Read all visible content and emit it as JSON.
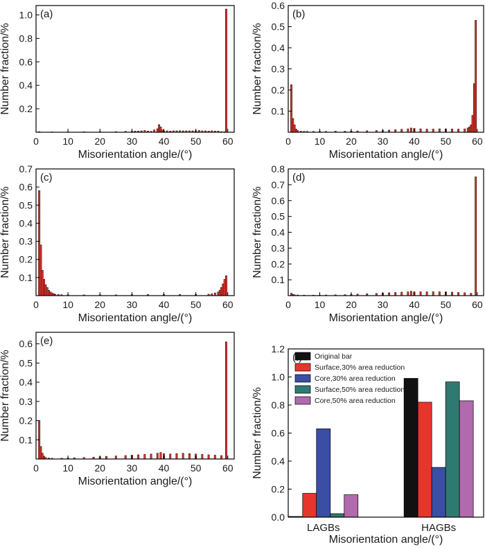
{
  "figure": {
    "type": "multi-panel histogram figure"
  },
  "colors": {
    "bar_fill": "#e8352c",
    "bar_stroke": "#2a0d0b",
    "axis": "#000000"
  },
  "chart_data": [
    {
      "id": "a",
      "type": "bar",
      "label": "(a)",
      "xlabel": "Misorientation angle/(°)",
      "ylabel": "Number fraction/%",
      "xlim": [
        0,
        62
      ],
      "ylim": [
        0,
        1.08
      ],
      "xticks": [
        "0",
        "10",
        "20",
        "30",
        "40",
        "50",
        "60"
      ],
      "yticks": [
        "0.2",
        "0.4",
        "0.6",
        "0.8",
        "1.0"
      ],
      "bin_width": 0.5,
      "x": [
        1,
        5,
        10,
        15,
        20,
        25,
        28,
        30,
        31,
        32,
        33,
        34,
        35,
        36,
        37,
        38,
        38.5,
        39,
        39.5,
        40,
        41,
        42,
        43,
        44,
        45,
        46,
        47,
        48,
        49,
        50,
        51,
        52,
        53,
        54,
        55,
        56,
        57,
        58,
        59,
        59.5
      ],
      "values": [
        0.005,
        0.003,
        0.003,
        0.004,
        0.005,
        0.005,
        0.008,
        0.008,
        0.01,
        0.01,
        0.012,
        0.015,
        0.01,
        0.008,
        0.02,
        0.03,
        0.065,
        0.045,
        0.02,
        0.012,
        0.012,
        0.01,
        0.012,
        0.012,
        0.013,
        0.012,
        0.012,
        0.012,
        0.012,
        0.013,
        0.015,
        0.012,
        0.012,
        0.01,
        0.012,
        0.01,
        0.01,
        0.005,
        0.004,
        1.05
      ]
    },
    {
      "id": "b",
      "type": "bar",
      "label": "(b)",
      "xlabel": "Misorientation angle/(°)",
      "ylabel": "Number fraction/%",
      "xlim": [
        0,
        62
      ],
      "ylim": [
        0,
        0.6
      ],
      "xticks": [
        "0",
        "10",
        "20",
        "30",
        "40",
        "50",
        "60"
      ],
      "yticks": [
        "0.1",
        "0.2",
        "0.3",
        "0.4",
        "0.5",
        "0.6"
      ],
      "bin_width": 0.5,
      "x": [
        1,
        1.5,
        2,
        2.5,
        3,
        4,
        5,
        6,
        8,
        10,
        12,
        15,
        18,
        20,
        22,
        25,
        28,
        30,
        32,
        34,
        36,
        38,
        39,
        40,
        42,
        44,
        46,
        48,
        50,
        52,
        54,
        56,
        57,
        57.5,
        58,
        58.5,
        59,
        59.5
      ],
      "values": [
        0.225,
        0.065,
        0.035,
        0.015,
        0.008,
        0.005,
        0.004,
        0.004,
        0.004,
        0.004,
        0.004,
        0.005,
        0.005,
        0.006,
        0.006,
        0.007,
        0.008,
        0.008,
        0.01,
        0.012,
        0.014,
        0.016,
        0.02,
        0.018,
        0.016,
        0.015,
        0.015,
        0.016,
        0.016,
        0.015,
        0.015,
        0.016,
        0.02,
        0.025,
        0.035,
        0.08,
        0.23,
        0.53
      ]
    },
    {
      "id": "c",
      "type": "bar",
      "label": "(c)",
      "xlabel": "Misorientation angle/(°)",
      "ylabel": "Number fraction/%",
      "xlim": [
        0,
        62
      ],
      "ylim": [
        0,
        0.7
      ],
      "xticks": [
        "0",
        "10",
        "20",
        "30",
        "40",
        "50",
        "60"
      ],
      "yticks": [
        "0.1",
        "0.2",
        "0.3",
        "0.4",
        "0.5",
        "0.6",
        "0.7"
      ],
      "bin_width": 0.5,
      "x": [
        1,
        1.5,
        2,
        2.5,
        3,
        3.5,
        4,
        4.5,
        5,
        5.5,
        6,
        7,
        8,
        10,
        15,
        20,
        25,
        30,
        35,
        40,
        45,
        50,
        54,
        55,
        56,
        57,
        57.5,
        58,
        58.5,
        59,
        59.5
      ],
      "values": [
        0.58,
        0.28,
        0.14,
        0.09,
        0.06,
        0.045,
        0.03,
        0.02,
        0.015,
        0.01,
        0.008,
        0.006,
        0.005,
        0.004,
        0.004,
        0.004,
        0.004,
        0.005,
        0.006,
        0.006,
        0.006,
        0.007,
        0.008,
        0.01,
        0.015,
        0.02,
        0.03,
        0.045,
        0.065,
        0.09,
        0.11
      ]
    },
    {
      "id": "d",
      "type": "bar",
      "label": "(d)",
      "xlabel": "Misorientation angle/(°)",
      "ylabel": "Number fraction/%",
      "xlim": [
        0,
        62
      ],
      "ylim": [
        0,
        0.8
      ],
      "xticks": [
        "0",
        "10",
        "20",
        "30",
        "40",
        "50",
        "60"
      ],
      "yticks": [
        "0.1",
        "0.2",
        "0.3",
        "0.4",
        "0.5",
        "0.6",
        "0.7",
        "0.8"
      ],
      "bin_width": 0.5,
      "x": [
        1,
        1.5,
        2,
        3,
        5,
        8,
        10,
        12,
        15,
        18,
        20,
        22,
        25,
        28,
        30,
        32,
        34,
        36,
        38,
        39,
        40,
        42,
        44,
        46,
        48,
        50,
        52,
        54,
        56,
        58,
        59.5
      ],
      "values": [
        0.015,
        0.008,
        0.005,
        0.004,
        0.003,
        0.003,
        0.003,
        0.004,
        0.005,
        0.006,
        0.008,
        0.01,
        0.012,
        0.014,
        0.016,
        0.018,
        0.02,
        0.022,
        0.024,
        0.028,
        0.024,
        0.024,
        0.024,
        0.025,
        0.024,
        0.024,
        0.022,
        0.02,
        0.018,
        0.015,
        0.75
      ]
    },
    {
      "id": "e",
      "type": "bar",
      "label": "(e)",
      "xlabel": "Misorientation angle/(°)",
      "ylabel": "Number fraction/%",
      "xlim": [
        0,
        62
      ],
      "ylim": [
        0,
        0.66
      ],
      "xticks": [
        "0",
        "10",
        "20",
        "30",
        "40",
        "50",
        "60"
      ],
      "yticks": [
        "0.1",
        "0.2",
        "0.3",
        "0.4",
        "0.5",
        "0.6"
      ],
      "bin_width": 0.5,
      "x": [
        1,
        1.5,
        2,
        2.5,
        3,
        4,
        5,
        8,
        10,
        12,
        15,
        18,
        20,
        22,
        25,
        28,
        30,
        32,
        34,
        36,
        38,
        39,
        40,
        42,
        44,
        46,
        48,
        50,
        52,
        54,
        56,
        58,
        59.5
      ],
      "values": [
        0.2,
        0.065,
        0.03,
        0.015,
        0.008,
        0.005,
        0.004,
        0.004,
        0.005,
        0.006,
        0.008,
        0.01,
        0.012,
        0.014,
        0.016,
        0.018,
        0.02,
        0.022,
        0.024,
        0.026,
        0.03,
        0.034,
        0.028,
        0.026,
        0.028,
        0.03,
        0.028,
        0.026,
        0.024,
        0.022,
        0.02,
        0.018,
        0.61
      ]
    },
    {
      "id": "f",
      "type": "bar",
      "label": "(f)",
      "xlabel": "Misorientation angle/(°)",
      "ylabel": "Number fraction/%",
      "ylim": [
        0,
        1.2
      ],
      "yticks": [
        "0.0",
        "0.2",
        "0.4",
        "0.6",
        "0.8",
        "1.0",
        "1.2"
      ],
      "categories": [
        "LAGBs",
        "HAGBs"
      ],
      "series": [
        {
          "name": "Original bar",
          "color": "#111111",
          "values": [
            0.005,
            0.99
          ]
        },
        {
          "name": "Surface,30% area reduction",
          "color": "#e8352c",
          "values": [
            0.17,
            0.82
          ]
        },
        {
          "name": "Core,30% area reduction",
          "color": "#3a4fa3",
          "values": [
            0.63,
            0.355
          ]
        },
        {
          "name": "Surface,50% area reduction",
          "color": "#2f7a70",
          "values": [
            0.025,
            0.965
          ]
        },
        {
          "name": "Core,50% area reduction",
          "color": "#b06aad",
          "values": [
            0.16,
            0.83
          ]
        }
      ]
    }
  ]
}
